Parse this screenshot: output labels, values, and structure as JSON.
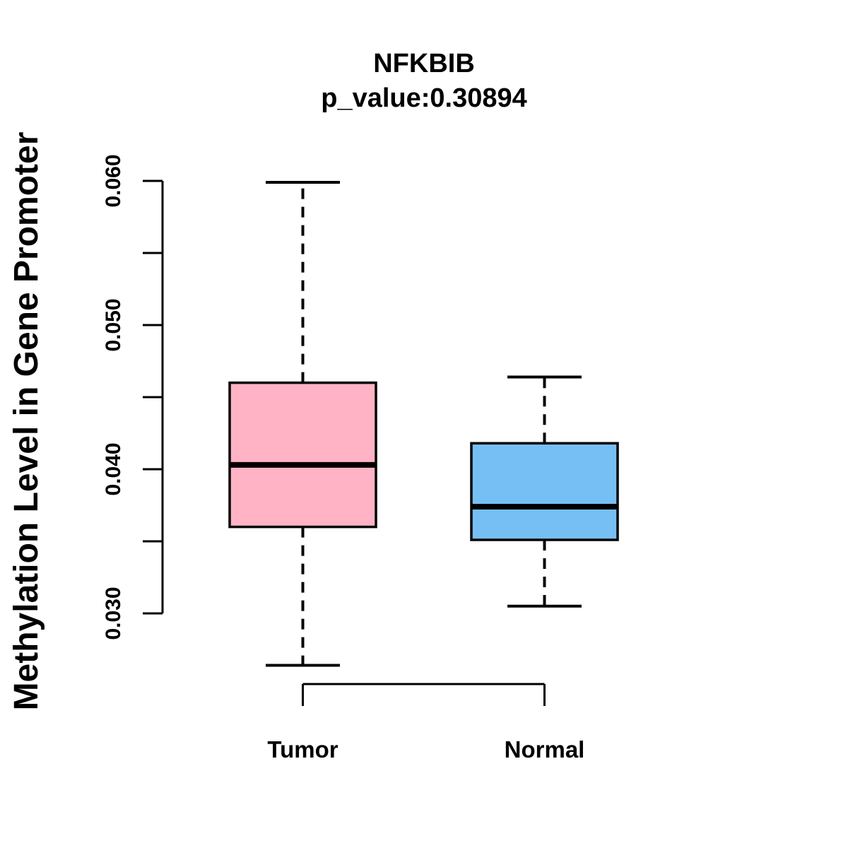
{
  "header": {
    "title": "NFKBIB",
    "subtitle": "p_value:0.30894"
  },
  "chart_data": {
    "type": "boxplot",
    "title": "NFKBIB",
    "subtitle": "p_value:0.30894",
    "ylabel": "Methylation Level in Gene Promoter",
    "xlabel": "",
    "categories": [
      "Tumor",
      "Normal"
    ],
    "series": [
      {
        "name": "Tumor",
        "box_color": "#FFB3C5",
        "whisker_low": 0.0264,
        "q1": 0.036,
        "median": 0.0403,
        "q3": 0.046,
        "whisker_high": 0.0599
      },
      {
        "name": "Normal",
        "box_color": "#76BFF5",
        "whisker_low": 0.0305,
        "q1": 0.0351,
        "median": 0.0374,
        "q3": 0.0418,
        "whisker_high": 0.0464
      }
    ],
    "y_axis": {
      "min": 0.03,
      "max": 0.06,
      "tick_step": 0.005,
      "ticks": [
        {
          "value": 0.03,
          "label": "0.030"
        },
        {
          "value": 0.035,
          "label": ""
        },
        {
          "value": 0.04,
          "label": "0.040"
        },
        {
          "value": 0.045,
          "label": ""
        },
        {
          "value": 0.05,
          "label": "0.050"
        },
        {
          "value": 0.055,
          "label": ""
        },
        {
          "value": 0.06,
          "label": "0.060"
        }
      ]
    },
    "style": {
      "line_color": "#000000",
      "background": "#FFFFFF",
      "whisker_line_style": "dashed",
      "grid": false,
      "legend": "none"
    }
  }
}
